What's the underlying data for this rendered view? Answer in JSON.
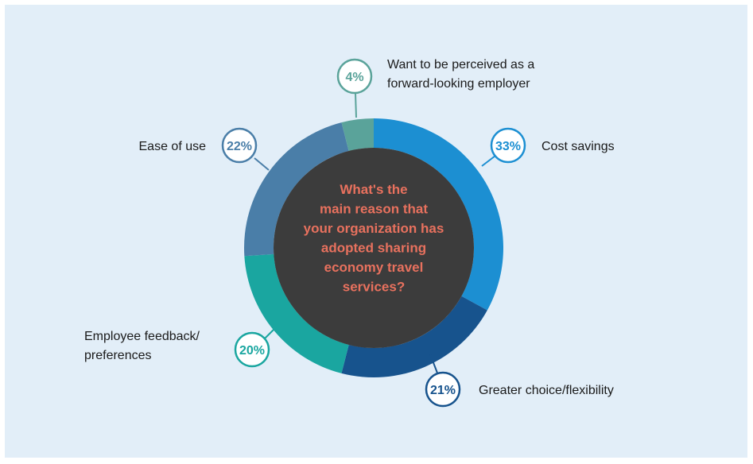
{
  "chart_data": {
    "type": "pie",
    "title": "What's the main reason that your organization has adopted sharing economy travel services?",
    "title_lines": [
      "What's the",
      "main reason that",
      "your organization has",
      "adopted sharing",
      "economy travel",
      "services?"
    ],
    "slices": [
      {
        "name": "Cost savings",
        "name_lines": [
          "Cost savings"
        ],
        "value": 33,
        "value_label": "33%",
        "color": "#1c8fd2"
      },
      {
        "name": "Greater choice/flexibility",
        "name_lines": [
          "Greater choice/flexibility"
        ],
        "value": 21,
        "value_label": "21%",
        "color": "#17538d"
      },
      {
        "name": "Employee feedback/ preferences",
        "name_lines": [
          "Employee feedback/",
          "preferences"
        ],
        "value": 20,
        "value_label": "20%",
        "color": "#1aa6a0"
      },
      {
        "name": "Ease of use",
        "name_lines": [
          "Ease of use"
        ],
        "value": 22,
        "value_label": "22%",
        "color": "#4a7ea8"
      },
      {
        "name": "Want to be perceived as a forward-looking employer",
        "name_lines": [
          "Want to be perceived as a",
          "forward-looking employer"
        ],
        "value": 4,
        "value_label": "4%",
        "color": "#5aa39a"
      }
    ],
    "center_color": "#3c3c3c",
    "background_color": "#e2eef8",
    "legend": "none"
  }
}
